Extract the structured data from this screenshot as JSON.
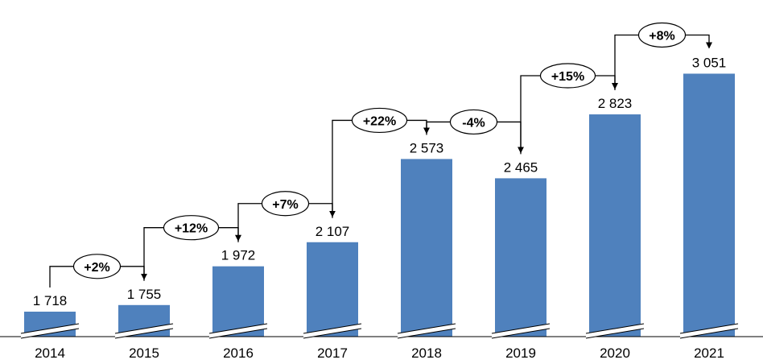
{
  "chart_data": {
    "type": "bar",
    "title": "",
    "xlabel": "",
    "ylabel": "",
    "categories": [
      "2014",
      "2015",
      "2016",
      "2017",
      "2018",
      "2019",
      "2020",
      "2021"
    ],
    "values": [
      1718,
      1755,
      1972,
      2107,
      2573,
      2465,
      2823,
      3051
    ],
    "value_labels": [
      "1 718",
      "1 755",
      "1 972",
      "2 107",
      "2 573",
      "2 465",
      "2 823",
      "3 051"
    ],
    "changes": [
      "+2%",
      "+12%",
      "+7%",
      "+22%",
      "-4%",
      "+15%",
      "+8%"
    ],
    "axis_break": true,
    "grid": false,
    "legend": "none",
    "colors": {
      "bar": "#4f81bd",
      "connector": "#000000",
      "background": "#ffffff"
    }
  }
}
